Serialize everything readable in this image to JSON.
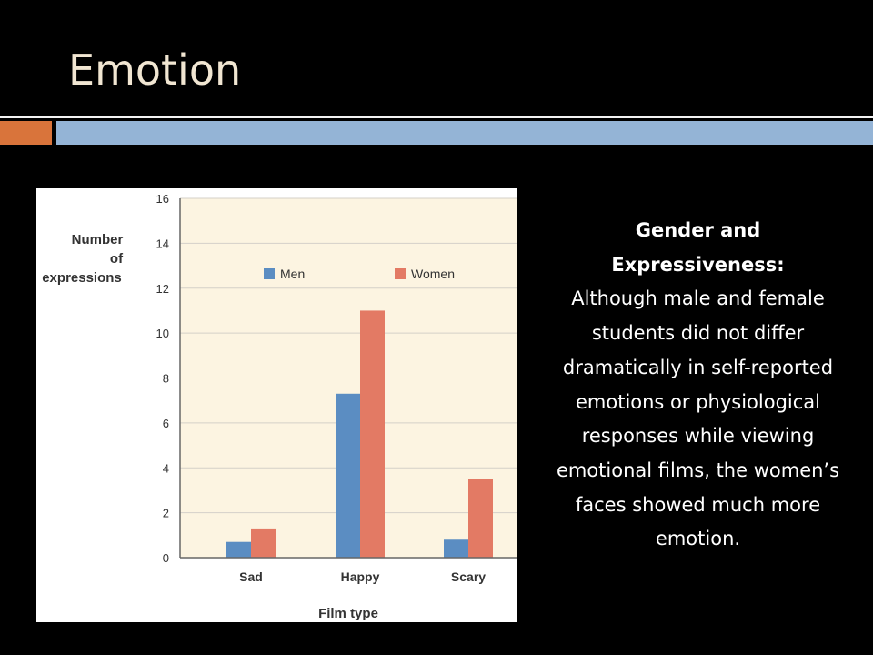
{
  "slide": {
    "title": "Emotion"
  },
  "text_panel": {
    "heading": "Gender and Expressiveness:",
    "body": "Although male and female students did not differ dramatically in self-reported emotions or physiological responses while viewing emotional films, the women’s faces showed much more emotion."
  },
  "colors": {
    "background": "#000000",
    "title": "#f1e6d2",
    "accent_orange": "#d9743b",
    "accent_blue": "#94b4d6",
    "plot_background": "#fcf4e1",
    "men": "#5b8dc2",
    "women": "#e37a64"
  },
  "chart_data": {
    "type": "bar",
    "categories": [
      "Sad",
      "Happy",
      "Scary"
    ],
    "series": [
      {
        "name": "Men",
        "values": [
          0.7,
          7.3,
          0.8
        ],
        "color": "#5b8dc2"
      },
      {
        "name": "Women",
        "values": [
          1.3,
          11.0,
          3.5
        ],
        "color": "#e37a64"
      }
    ],
    "title": "",
    "xlabel": "Film type",
    "ylabel": "Number of expressions",
    "ylabel_lines": [
      "Number",
      "of",
      "expressions"
    ],
    "ylim": [
      0,
      16
    ],
    "yticks": [
      0,
      2,
      4,
      6,
      8,
      10,
      12,
      14,
      16
    ],
    "grid": true,
    "legend": "top"
  }
}
